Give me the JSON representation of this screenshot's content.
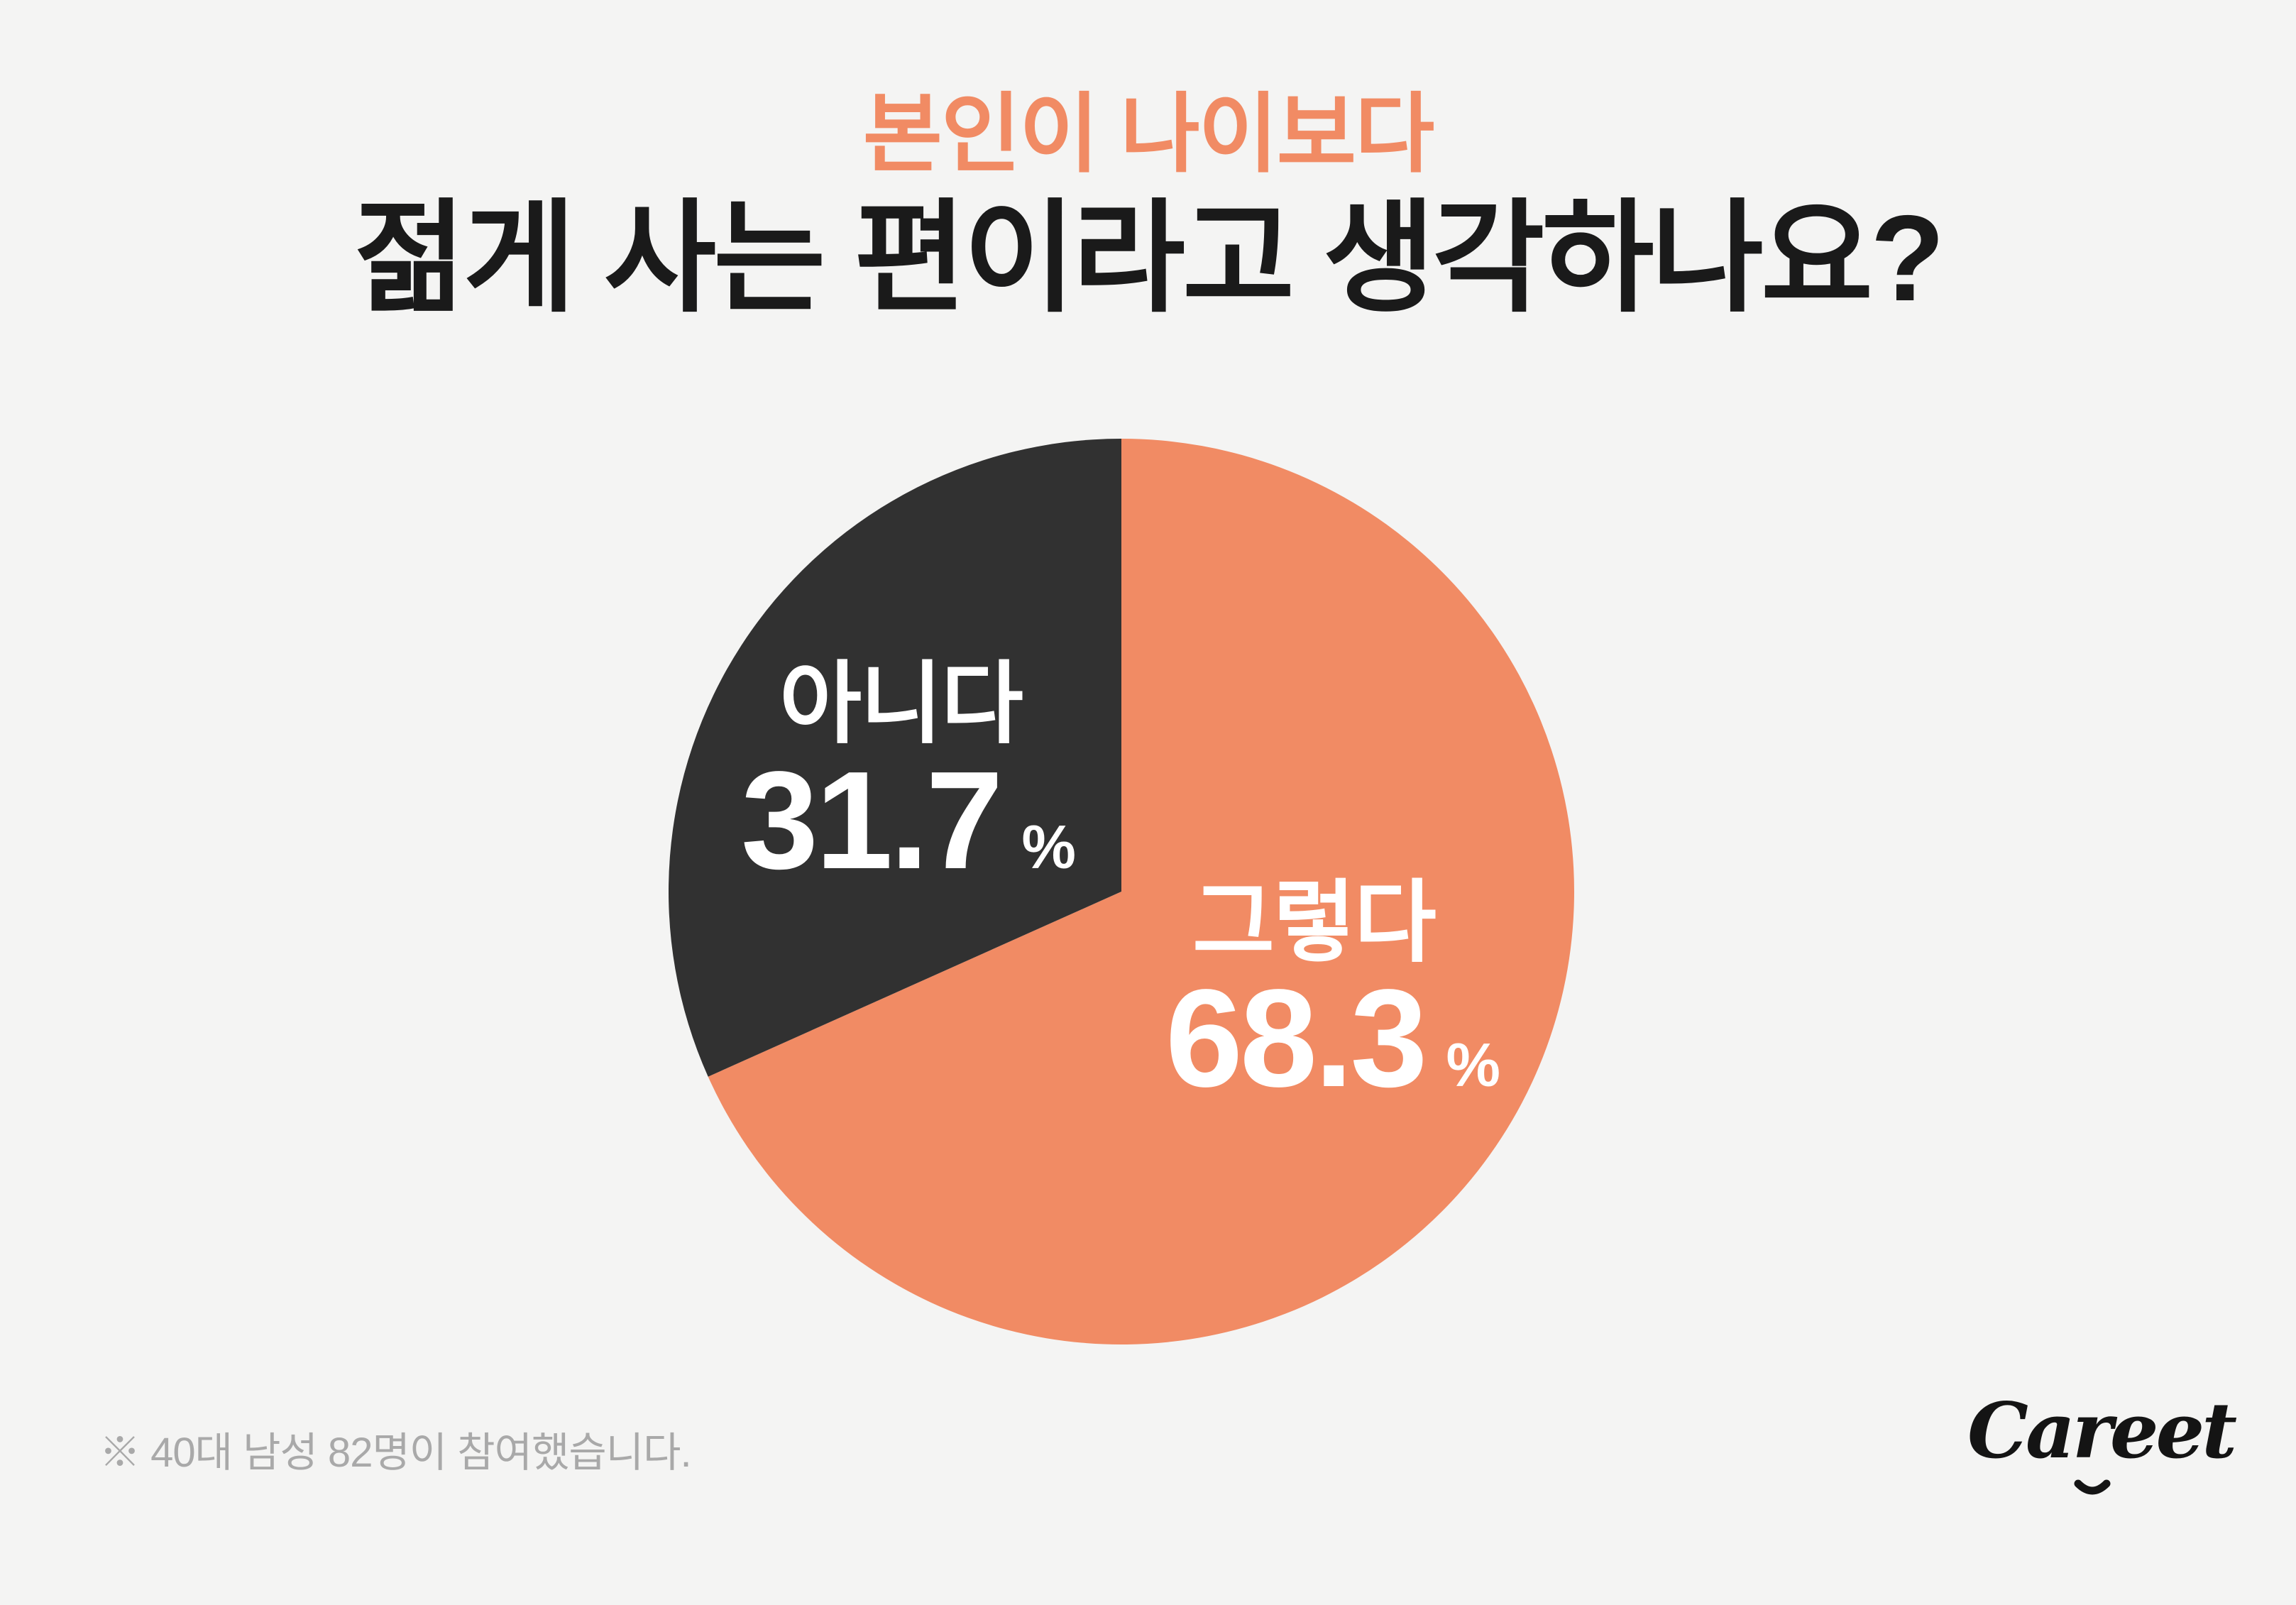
{
  "page": {
    "background": "#F4F4F3"
  },
  "title": {
    "accent_line": "본인이 나이보다",
    "accent_color": "#F18B64",
    "main_line": "젊게 사는 편이라고 생각하나요?",
    "main_color": "#1A1A1A"
  },
  "chart_data": {
    "type": "pie",
    "title": "본인이 나이보다 젊게 사는 편이라고 생각하나요?",
    "start_angle_deg": 0,
    "direction": "clockwise",
    "legend_position": "labels-inside-slices",
    "slices": [
      {
        "label": "그렇다",
        "value": 68.3,
        "unit": "%",
        "color": "#F18B64",
        "text_color": "#FFFFFF"
      },
      {
        "label": "아니다",
        "value": 31.7,
        "unit": "%",
        "color": "#313131",
        "text_color": "#FFFFFF"
      }
    ]
  },
  "footnote": {
    "text": "※  40대 남성 82명이 참여했습니다.",
    "color": "#A9A9A9"
  },
  "logo": {
    "text": "Careet",
    "color": "#141414",
    "smile_icon": "smile-arc"
  }
}
